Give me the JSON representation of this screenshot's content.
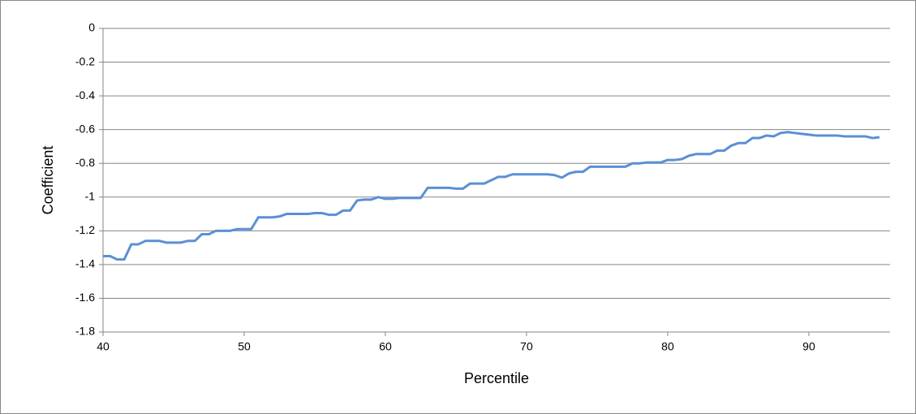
{
  "chart_data": {
    "type": "line",
    "x_label": "Percentile",
    "y_label": "Coefficient",
    "x": [
      40,
      40.5,
      41,
      41.5,
      42,
      42.5,
      43,
      43.5,
      44,
      44.5,
      45,
      45.5,
      46,
      46.5,
      47,
      47.5,
      48,
      48.5,
      49,
      49.5,
      50,
      50.5,
      51,
      51.5,
      52,
      52.5,
      53,
      53.5,
      54,
      54.5,
      55,
      55.5,
      56,
      56.5,
      57,
      57.5,
      58,
      58.5,
      59,
      59.5,
      60,
      60.5,
      61,
      61.5,
      62,
      62.5,
      63,
      63.5,
      64,
      64.5,
      65,
      65.5,
      66,
      66.5,
      67,
      67.5,
      68,
      68.5,
      69,
      69.5,
      70,
      70.5,
      71,
      71.5,
      72,
      72.5,
      73,
      73.5,
      74,
      74.5,
      75,
      75.5,
      76,
      76.5,
      77,
      77.5,
      78,
      78.5,
      79,
      79.5,
      80,
      80.5,
      81,
      81.5,
      82,
      82.5,
      83,
      83.5,
      84,
      84.5,
      85,
      85.5,
      86,
      86.5,
      87,
      87.5,
      88,
      88.5,
      89,
      89.5,
      90,
      90.5,
      91,
      91.5,
      92,
      92.5,
      93,
      93.5,
      94,
      94.5,
      95
    ],
    "series": [
      {
        "color": "#5b8fd6",
        "values": [
          -1.35,
          -1.35,
          -1.37,
          -1.37,
          -1.28,
          -1.28,
          -1.26,
          -1.26,
          -1.26,
          -1.27,
          -1.27,
          -1.27,
          -1.26,
          -1.26,
          -1.22,
          -1.22,
          -1.2,
          -1.2,
          -1.2,
          -1.19,
          -1.19,
          -1.19,
          -1.12,
          -1.12,
          -1.12,
          -1.115,
          -1.1,
          -1.1,
          -1.1,
          -1.1,
          -1.095,
          -1.095,
          -1.105,
          -1.105,
          -1.08,
          -1.08,
          -1.02,
          -1.015,
          -1.015,
          -1.0,
          -1.01,
          -1.01,
          -1.005,
          -1.005,
          -1.005,
          -1.005,
          -0.945,
          -0.945,
          -0.945,
          -0.945,
          -0.95,
          -0.95,
          -0.92,
          -0.92,
          -0.92,
          -0.9,
          -0.88,
          -0.88,
          -0.865,
          -0.865,
          -0.865,
          -0.865,
          -0.865,
          -0.865,
          -0.87,
          -0.885,
          -0.86,
          -0.85,
          -0.85,
          -0.82,
          -0.82,
          -0.82,
          -0.82,
          -0.82,
          -0.82,
          -0.8,
          -0.8,
          -0.795,
          -0.795,
          -0.795,
          -0.78,
          -0.78,
          -0.775,
          -0.755,
          -0.745,
          -0.745,
          -0.745,
          -0.725,
          -0.725,
          -0.695,
          -0.68,
          -0.68,
          -0.65,
          -0.65,
          -0.635,
          -0.64,
          -0.62,
          -0.615,
          -0.62,
          -0.625,
          -0.63,
          -0.635,
          -0.635,
          -0.635,
          -0.635,
          -0.64,
          -0.64,
          -0.64,
          -0.64,
          -0.65,
          -0.645
        ]
      }
    ],
    "xlim": [
      40,
      95.75
    ],
    "xticks": [
      40,
      50,
      60,
      70,
      80,
      90
    ],
    "ylim": [
      -1.8,
      0
    ],
    "yticks": [
      0,
      -0.2,
      -0.4,
      -0.6,
      -0.8,
      -1,
      -1.2,
      -1.4,
      -1.6,
      -1.8
    ],
    "grid": true
  }
}
